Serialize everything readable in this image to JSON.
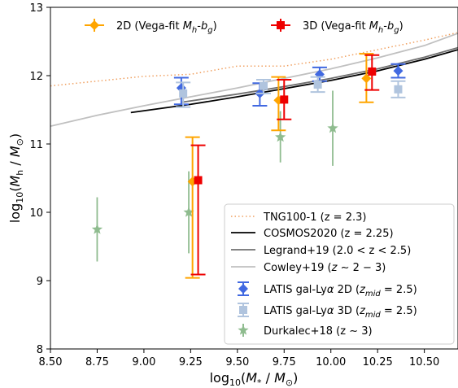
{
  "chart_data": {
    "type": "scatter",
    "xlabel": "log10(M* / M⊙)",
    "ylabel": "log10(Mh / M⊙)",
    "xlim": [
      8.5,
      10.68
    ],
    "ylim": [
      8,
      13
    ],
    "xticks": [
      8.5,
      8.75,
      9.0,
      9.25,
      9.5,
      9.75,
      10.0,
      10.25,
      10.5
    ],
    "xtick_labels": [
      "8.50",
      "8.75",
      "9.00",
      "9.25",
      "9.50",
      "9.75",
      "10.00",
      "10.25",
      "10.50"
    ],
    "yticks": [
      8,
      9,
      10,
      11,
      12,
      13
    ],
    "ytick_labels": [
      "8",
      "9",
      "10",
      "11",
      "12",
      "13"
    ],
    "grid": false,
    "top_legend": [
      {
        "label": "2D (Vega-fit Mh-bg)",
        "color": "#ffa500",
        "marker": "diamond"
      },
      {
        "label": "3D (Vega-fit Mh-bg)",
        "color": "#ee0000",
        "marker": "square"
      }
    ],
    "legend_placement": "lower-right",
    "lines": [
      {
        "name": "TNG100-1 (z = 2.3)",
        "color": "#f0a060",
        "style": "dotted",
        "x": [
          8.5,
          8.75,
          9.0,
          9.25,
          9.5,
          9.75,
          10.0,
          10.25,
          10.5,
          10.68
        ],
        "y": [
          11.85,
          11.92,
          11.99,
          12.02,
          12.14,
          12.14,
          12.24,
          12.38,
          12.52,
          12.63
        ]
      },
      {
        "name": "COSMOS2020 (z = 2.25)",
        "color": "#000000",
        "style": "solid",
        "x": [
          8.93,
          9.25,
          9.5,
          9.75,
          10.0,
          10.25,
          10.5,
          10.68
        ],
        "y": [
          11.46,
          11.58,
          11.69,
          11.81,
          11.93,
          12.07,
          12.24,
          12.38
        ]
      },
      {
        "name": "Legrand+19 (2.0 < z < 2.5)",
        "color": "#707070",
        "style": "solid",
        "x": [
          9.2,
          9.5,
          9.75,
          10.0,
          10.25,
          10.5,
          10.68
        ],
        "y": [
          11.61,
          11.73,
          11.84,
          11.96,
          12.1,
          12.27,
          12.41
        ]
      },
      {
        "name": "Cowley+19 (z ~ 2 − 3)",
        "color": "#c0c0c0",
        "style": "solid",
        "x": [
          8.5,
          8.75,
          9.0,
          9.25,
          9.5,
          9.75,
          10.0,
          10.25,
          10.5,
          10.68
        ],
        "y": [
          11.26,
          11.42,
          11.56,
          11.69,
          11.82,
          11.96,
          12.1,
          12.26,
          12.44,
          12.62
        ]
      }
    ],
    "series": [
      {
        "name": "LATIS gal-Lyα 2D (zmid = 2.5)",
        "color": "#4169e1",
        "marker": "diamond",
        "points": [
          {
            "x": 9.2,
            "y": 11.82,
            "ylo": 11.58,
            "yhi": 11.97
          },
          {
            "x": 9.62,
            "y": 11.74,
            "ylo": 11.56,
            "yhi": 11.89
          },
          {
            "x": 9.94,
            "y": 12.02,
            "ylo": 11.92,
            "yhi": 12.12
          },
          {
            "x": 10.36,
            "y": 12.07,
            "ylo": 11.97,
            "yhi": 12.17
          }
        ]
      },
      {
        "name": "LATIS gal-Lyα 3D (zmid = 2.5)",
        "color": "#b0c4de",
        "marker": "square",
        "points": [
          {
            "x": 9.21,
            "y": 11.74,
            "ylo": 11.54,
            "yhi": 11.9
          },
          {
            "x": 9.64,
            "y": 11.85,
            "ylo": 11.74,
            "yhi": 11.94
          },
          {
            "x": 9.93,
            "y": 11.87,
            "ylo": 11.76,
            "yhi": 11.98
          },
          {
            "x": 10.36,
            "y": 11.8,
            "ylo": 11.68,
            "yhi": 11.92
          }
        ]
      },
      {
        "name": "Durkalec+18 (z ~ 3)",
        "color": "#8fbc8f",
        "marker": "star",
        "points": [
          {
            "x": 8.75,
            "y": 9.75,
            "ylo": 9.28,
            "yhi": 10.22
          },
          {
            "x": 9.24,
            "y": 10.0,
            "ylo": 9.4,
            "yhi": 10.6
          },
          {
            "x": 9.73,
            "y": 11.1,
            "ylo": 10.73,
            "yhi": 11.48
          },
          {
            "x": 10.01,
            "y": 11.23,
            "ylo": 10.68,
            "yhi": 11.78
          }
        ]
      },
      {
        "name": "2D (Vega-fit Mh-bg)",
        "color": "#ffa500",
        "marker": "diamond",
        "points": [
          {
            "x": 9.26,
            "y": 10.45,
            "ylo": 9.04,
            "yhi": 11.1
          },
          {
            "x": 9.72,
            "y": 11.64,
            "ylo": 11.2,
            "yhi": 11.98
          },
          {
            "x": 10.19,
            "y": 11.96,
            "ylo": 11.61,
            "yhi": 12.32
          }
        ]
      },
      {
        "name": "3D (Vega-fit Mh-bg)",
        "color": "#ee0000",
        "marker": "square",
        "points": [
          {
            "x": 9.29,
            "y": 10.47,
            "ylo": 9.09,
            "yhi": 10.98
          },
          {
            "x": 9.75,
            "y": 11.65,
            "ylo": 11.36,
            "yhi": 11.94
          },
          {
            "x": 10.22,
            "y": 12.06,
            "ylo": 11.79,
            "yhi": 12.3
          }
        ]
      }
    ]
  }
}
